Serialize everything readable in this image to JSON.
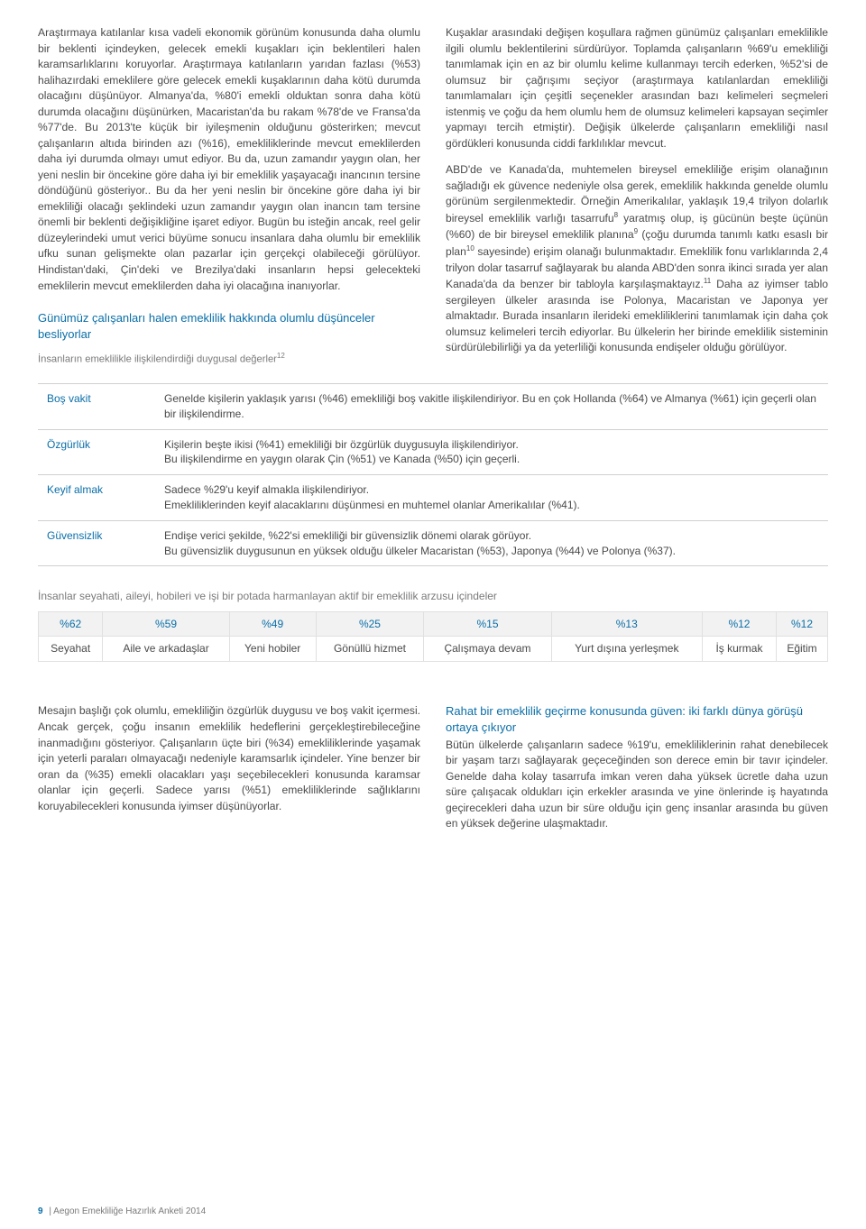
{
  "columns": {
    "left_p1": "Araştırmaya katılanlar kısa vadeli ekonomik görünüm konusunda daha olumlu bir beklenti içindeyken, gelecek emekli kuşakları için beklentileri halen karamsarlıklarını koruyorlar. Araştırmaya katılanların yarıdan fazlası (%53) halihazırdaki emeklilere göre gelecek emekli kuşaklarının daha kötü durumda olacağını düşünüyor. Almanya'da, %80'i emekli olduktan sonra daha kötü durumda olacağını düşünürken, Macaristan'da bu rakam %78'de ve Fransa'da %77'de. Bu 2013'te küçük bir iyileşmenin olduğunu gösterirken; mevcut çalışanların altıda birinden azı (%16), emekliliklerinde mevcut emeklilerden daha iyi durumda olmayı umut ediyor. Bu da, uzun zamandır yaygın olan, her yeni neslin bir öncekine göre daha iyi bir emeklilik yaşayacağı inancının tersine döndüğünü gösteriyor.. Bu da her yeni neslin bir öncekine göre daha iyi bir emekliliği olacağı şeklindeki uzun zamandır yaygın olan inancın tam tersine önemli bir beklenti değişikliğine işaret ediyor. Bugün bu isteğin ancak, reel gelir düzeylerindeki umut verici büyüme sonucu insanlara daha olumlu bir emeklilik ufku sunan gelişmekte olan pazarlar için gerçekçi olabileceği görülüyor. Hindistan'daki, Çin'deki ve Brezilya'daki insanların hepsi gelecekteki emeklilerin mevcut emeklilerden daha iyi olacağına inanıyorlar.",
    "left_heading": "Günümüz çalışanları halen emeklilik hakkında olumlu düşünceler besliyorlar",
    "left_note": "İnsanların emeklilikle ilişkilendirdiği duygusal değerler",
    "left_note_sup": "12",
    "right_p1": "Kuşaklar arasındaki değişen koşullara rağmen günümüz çalışanları emeklilikle ilgili olumlu beklentilerini sürdürüyor. Toplamda çalışanların %69'u emekliliği tanımlamak için en az bir olumlu kelime kullanmayı tercih ederken, %52'si de olumsuz bir çağrışımı seçiyor (araştırmaya katılanlardan emekliliği tanımlamaları için çeşitli seçenekler arasından bazı kelimeleri seçmeleri istenmiş ve çoğu da hem olumlu hem de olumsuz kelimeleri kapsayan seçimler yapmayı tercih etmiştir). Değişik ülkelerde çalışanların emekliliği nasıl gördükleri konusunda ciddi farklılıklar mevcut.",
    "right_p2_pre": "ABD'de ve Kanada'da, muhtemelen bireysel emekliliğe erişim olanağının sağladığı ek güvence nedeniyle olsa gerek, emeklilik hakkında genelde olumlu görünüm sergilenmektedir. Örneğin Amerikalılar, yaklaşık 19,4 trilyon dolarlık bireysel emeklilik varlığı tasarrufu",
    "right_sup8": "8",
    "right_p2_mid1": " yaratmış olup, iş gücünün beşte üçünün (%60) de bir bireysel emeklilik planına",
    "right_sup9": "9",
    "right_p2_mid2": " (çoğu durumda tanımlı katkı esaslı bir plan",
    "right_sup10": "10",
    "right_p2_mid3": " sayesinde) erişim olanağı bulunmaktadır. Emeklilik fonu varlıklarında 2,4 trilyon dolar tasarruf sağlayarak bu alanda ABD'den sonra ikinci sırada yer alan Kanada'da da benzer bir tabloyla karşılaşmaktayız.",
    "right_sup11": "11",
    "right_p2_post": " Daha az iyimser tablo sergileyen ülkeler arasında ise Polonya, Macaristan ve Japonya yer almaktadır. Burada insanların ilerideki emekliliklerini tanımlamak için daha çok olumsuz kelimeleri tercih ediyorlar. Bu ülkelerin her birinde emeklilik sisteminin sürdürülebilirliği ya da yeterliliği konusunda endişeler olduğu görülüyor."
  },
  "values_table": {
    "rows": [
      {
        "label": "Boş vakit",
        "desc": "Genelde kişilerin yaklaşık yarısı (%46) emekliliği boş vakitle ilişkilendiriyor. Bu en çok Hollanda (%64) ve Almanya (%61) için geçerli olan bir ilişkilendirme."
      },
      {
        "label": "Özgürlük",
        "desc": "Kişilerin beşte ikisi (%41) emekliliği bir özgürlük duygusuyla ilişkilendiriyor.\nBu ilişkilendirme en yaygın olarak Çin (%51) ve Kanada (%50) için geçerli."
      },
      {
        "label": "Keyif almak",
        "desc": "Sadece %29'u keyif almakla ilişkilendiriyor.\nEmekliliklerinden keyif alacaklarını düşünmesi en muhtemel olanlar Amerikalılar (%41)."
      },
      {
        "label": "Güvensizlik",
        "desc": "Endişe verici şekilde, %22'si emekliliği bir güvensizlik dönemi olarak görüyor.\nBu güvensizlik duygusunun en yüksek olduğu ülkeler Macaristan (%53), Japonya (%44) ve Polonya (%37)."
      }
    ]
  },
  "aspirations": {
    "heading": "İnsanlar seyahati, aileyi, hobileri ve işi bir potada harmanlayan aktif bir emeklilik arzusu içindeler",
    "percents": [
      "%62",
      "%59",
      "%49",
      "%25",
      "%15",
      "%13",
      "%12",
      "%12"
    ],
    "labels": [
      "Seyahat",
      "Aile ve arkadaşlar",
      "Yeni hobiler",
      "Gönüllü hizmet",
      "Çalışmaya devam",
      "Yurt dışına yerleşmek",
      "İş kurmak",
      "Eğitim"
    ]
  },
  "bottom": {
    "left": "Mesajın başlığı çok olumlu, emekliliğin özgürlük duygusu ve boş vakit içermesi. Ancak gerçek, çoğu insanın emeklilik hedeflerini gerçekleştirebileceğine inanmadığını gösteriyor. Çalışanların üçte biri (%34) emekliliklerinde yaşamak için yeterli paraları olmayacağı nedeniyle karamsarlık içindeler. Yine benzer bir oran da (%35) emekli olacakları yaşı seçebilecekleri konusunda karamsar olanlar için geçerli. Sadece yarısı (%51) emekliliklerinde sağlıklarını koruyabilecekleri konusunda iyimser düşünüyorlar.",
    "right_heading": "Rahat bir emeklilik geçirme konusunda güven: iki farklı dünya görüşü ortaya çıkıyor",
    "right": "Bütün ülkelerde çalışanların sadece %19'u, emekliliklerinin rahat denebilecek bir yaşam tarzı sağlayarak geçeceğinden son derece emin bir tavır içindeler. Genelde daha kolay tasarrufa imkan veren daha yüksek ücretle daha uzun süre çalışacak oldukları için erkekler arasında ve yine önlerinde iş hayatında geçirecekleri daha uzun bir süre olduğu için genç insanlar arasında bu güven en yüksek değerine ulaşmaktadır."
  },
  "footer": {
    "page": "9",
    "text": "Aegon Emekliliğe Hazırlık Anketi 2014"
  }
}
